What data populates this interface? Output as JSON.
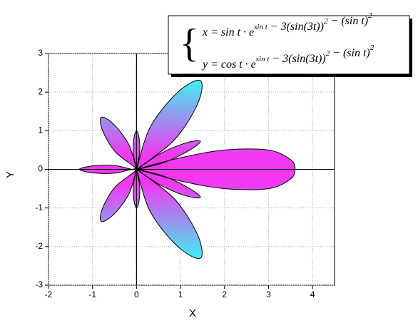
{
  "chart_data": {
    "type": "area",
    "x_label": "X",
    "y_label": "Y",
    "annotation": [
      [
        {
          "text": "x = sin t · e"
        },
        {
          "sup": "sin t"
        },
        {
          "text": " − 3(sin(3t))"
        },
        {
          "sup": "2"
        },
        {
          "text": " − (sin t)"
        },
        {
          "sup": "2"
        }
      ],
      [
        {
          "text": "y = cos t · e"
        },
        {
          "sup": "sin t"
        },
        {
          "text": " − 3(sin(3t))"
        },
        {
          "sup": "2"
        },
        {
          "text": " − (sin t)"
        },
        {
          "sup": "2"
        }
      ]
    ],
    "x": [
      0,
      1,
      2,
      3,
      3.5,
      3.6,
      3.5,
      3,
      2,
      1,
      0,
      0.63,
      1.21,
      1.45,
      1.11,
      0.53,
      0,
      0.85,
      1.39,
      1.45,
      0.93,
      0.31,
      0,
      0.07,
      0.06,
      0,
      -0.06,
      -0.07,
      0,
      -0.17,
      -0.51,
      -0.8,
      -0.77,
      -0.48,
      0,
      -0.5,
      -1.0,
      -1.3,
      -1.0,
      -0.5,
      0,
      -0.48,
      -0.77,
      -0.8,
      -0.51,
      -0.17,
      0,
      -0.07,
      -0.06,
      0,
      0.06,
      0.07,
      0,
      0.31,
      0.93,
      1.45,
      1.39,
      0.85,
      0,
      0.53,
      1.11,
      1.45,
      1.21,
      0.63
    ],
    "y": [
      0,
      -0.3,
      -0.5,
      -0.5,
      -0.25,
      0,
      0.25,
      0.5,
      0.5,
      0.3,
      0,
      0.18,
      0.5,
      0.73,
      0.68,
      0.4,
      0,
      0.75,
      1.7,
      2.3,
      1.99,
      1.09,
      0,
      0.4,
      0.8,
      1,
      0.8,
      0.4,
      0,
      0.63,
      1.16,
      1.35,
      1.0,
      0.45,
      0,
      0.1,
      0.09,
      0,
      -0.09,
      -0.1,
      0,
      -0.45,
      -1.0,
      -1.35,
      -1.16,
      -0.63,
      0,
      -0.4,
      -0.8,
      -1,
      -0.8,
      -0.4,
      0,
      -1.09,
      -1.99,
      -2.3,
      -1.7,
      -0.75,
      0,
      -0.4,
      -0.68,
      -0.73,
      -0.5,
      -0.18
    ],
    "fill_colors": [
      "#3ff0f0",
      "#f038f0"
    ],
    "line_color": "#000000",
    "xlim": [
      -2,
      4.5
    ],
    "ylim": [
      -3,
      3
    ],
    "xticks": [
      -2,
      -1,
      0,
      1,
      2,
      3,
      4
    ],
    "yticks": [
      -3,
      -2,
      -1,
      0,
      1,
      2,
      3
    ],
    "grid": true
  }
}
